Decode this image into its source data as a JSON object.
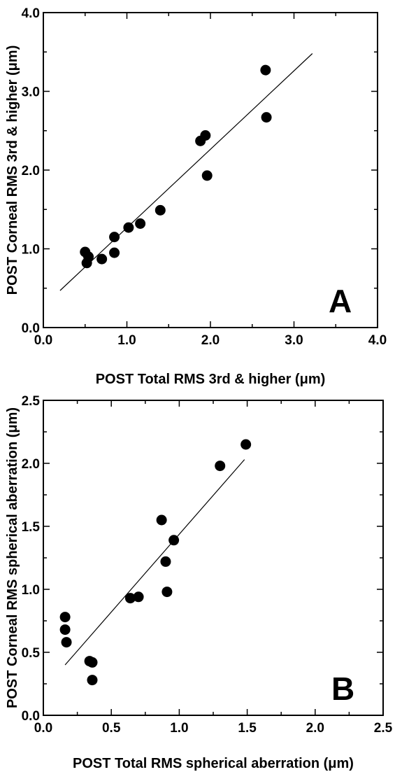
{
  "chart_data": [
    {
      "type": "scatter",
      "panel_label": "A",
      "xlabel": "POST Total RMS 3rd & higher (μm)",
      "ylabel": "POST Corneal RMS 3rd & higher (μm)",
      "xlim": [
        0,
        4
      ],
      "ylim": [
        0,
        4
      ],
      "x_ticks": [
        "0.0",
        "1.0",
        "2.0",
        "3.0",
        "4.0"
      ],
      "y_ticks": [
        "0.0",
        "1.0",
        "2.0",
        "3.0",
        "4.0"
      ],
      "grid": false,
      "points": [
        {
          "x": 0.5,
          "y": 0.96
        },
        {
          "x": 0.52,
          "y": 0.82
        },
        {
          "x": 0.54,
          "y": 0.9
        },
        {
          "x": 0.7,
          "y": 0.87
        },
        {
          "x": 0.85,
          "y": 0.95
        },
        {
          "x": 0.85,
          "y": 1.15
        },
        {
          "x": 1.02,
          "y": 1.27
        },
        {
          "x": 1.16,
          "y": 1.32
        },
        {
          "x": 1.4,
          "y": 1.49
        },
        {
          "x": 1.88,
          "y": 2.37
        },
        {
          "x": 1.94,
          "y": 2.44
        },
        {
          "x": 1.96,
          "y": 1.93
        },
        {
          "x": 2.66,
          "y": 3.27
        },
        {
          "x": 2.67,
          "y": 2.67
        }
      ],
      "fit_line": [
        {
          "x": 0.2,
          "y": 0.47
        },
        {
          "x": 3.22,
          "y": 3.48
        }
      ]
    },
    {
      "type": "scatter",
      "panel_label": "B",
      "xlabel": "POST Total RMS spherical aberration (μm)",
      "ylabel": "POST Corneal RMS spherical aberration (μm)",
      "xlim": [
        0,
        2.5
      ],
      "ylim": [
        0,
        2.5
      ],
      "x_ticks": [
        "0.0",
        "0.5",
        "1.0",
        "1.5",
        "2.0",
        "2.5"
      ],
      "y_ticks": [
        "0.0",
        "0.5",
        "1.0",
        "1.5",
        "2.0",
        "2.5"
      ],
      "grid": false,
      "points": [
        {
          "x": 0.16,
          "y": 0.78
        },
        {
          "x": 0.16,
          "y": 0.68
        },
        {
          "x": 0.17,
          "y": 0.58
        },
        {
          "x": 0.34,
          "y": 0.43
        },
        {
          "x": 0.36,
          "y": 0.42
        },
        {
          "x": 0.36,
          "y": 0.28
        },
        {
          "x": 0.64,
          "y": 0.93
        },
        {
          "x": 0.7,
          "y": 0.94
        },
        {
          "x": 0.87,
          "y": 1.55
        },
        {
          "x": 0.9,
          "y": 1.22
        },
        {
          "x": 0.91,
          "y": 0.98
        },
        {
          "x": 0.96,
          "y": 1.39
        },
        {
          "x": 1.3,
          "y": 1.98
        },
        {
          "x": 1.49,
          "y": 2.15
        }
      ],
      "fit_line": [
        {
          "x": 0.16,
          "y": 0.4
        },
        {
          "x": 1.48,
          "y": 2.03
        }
      ]
    }
  ]
}
